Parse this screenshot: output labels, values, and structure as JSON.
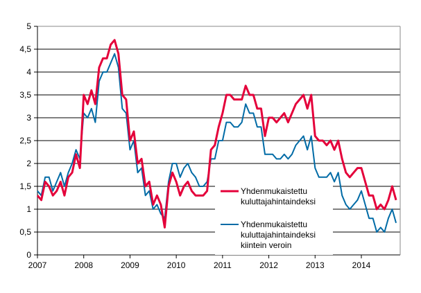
{
  "chart_data": {
    "type": "line",
    "title": "",
    "xlabel": "",
    "ylabel": "",
    "x_start": "2007-01",
    "x_frequency": "monthly",
    "x_ticks": [
      "2007",
      "2008",
      "2009",
      "2010",
      "2011",
      "2012",
      "2013",
      "2014"
    ],
    "y_ticks": [
      "0",
      "0,5",
      "1",
      "1,5",
      "2",
      "2,5",
      "3",
      "3,5",
      "4",
      "4,5",
      "5"
    ],
    "ylim": [
      0,
      5
    ],
    "grid": true,
    "legend_position": "bottom-right",
    "series": [
      {
        "name": "Yhdenmukaistettu kuluttajahintaindeksi",
        "name_lines": [
          "Yhdenmukaistettu",
          "kuluttajahintaindeksi"
        ],
        "color": "#e4003a",
        "values": [
          1.3,
          1.2,
          1.6,
          1.5,
          1.3,
          1.4,
          1.6,
          1.3,
          1.7,
          1.8,
          2.2,
          1.9,
          3.5,
          3.3,
          3.6,
          3.3,
          4.1,
          4.3,
          4.3,
          4.6,
          4.7,
          4.4,
          3.5,
          3.4,
          2.5,
          2.7,
          2.0,
          2.1,
          1.5,
          1.6,
          1.1,
          1.3,
          1.1,
          0.6,
          1.5,
          1.8,
          1.6,
          1.3,
          1.5,
          1.6,
          1.4,
          1.3,
          1.3,
          1.3,
          1.4,
          2.3,
          2.4,
          2.8,
          3.1,
          3.5,
          3.5,
          3.4,
          3.4,
          3.4,
          3.7,
          3.5,
          3.5,
          3.2,
          3.2,
          2.6,
          3.0,
          3.0,
          2.9,
          3.0,
          3.1,
          2.9,
          3.1,
          3.3,
          3.4,
          3.5,
          3.2,
          3.5,
          2.6,
          2.5,
          2.5,
          2.4,
          2.5,
          2.3,
          2.5,
          2.1,
          1.8,
          1.7,
          1.8,
          1.9,
          1.9,
          1.6,
          1.3,
          1.3,
          1.0,
          1.1,
          1.0,
          1.2,
          1.5,
          1.2
        ]
      },
      {
        "name": "Yhdenmukaistettu kuluttajahintaindeksi kiintein veroin",
        "name_lines": [
          "Yhdenmukaistettu",
          "kuluttajahintaindeksi",
          "kiintein veroin"
        ],
        "color": "#006ba6",
        "values": [
          1.4,
          1.3,
          1.7,
          1.7,
          1.4,
          1.6,
          1.8,
          1.5,
          1.8,
          2.0,
          2.3,
          2.1,
          3.1,
          3.0,
          3.2,
          2.9,
          3.8,
          4.0,
          4.0,
          4.2,
          4.4,
          4.1,
          3.2,
          3.1,
          2.3,
          2.5,
          1.8,
          1.9,
          1.3,
          1.4,
          1.0,
          1.1,
          0.9,
          0.8,
          1.6,
          2.0,
          2.0,
          1.7,
          1.9,
          2.0,
          1.8,
          1.7,
          1.5,
          1.5,
          1.6,
          2.1,
          2.1,
          2.5,
          2.5,
          2.9,
          2.9,
          2.8,
          2.8,
          2.9,
          3.3,
          3.1,
          3.1,
          2.8,
          2.8,
          2.2,
          2.2,
          2.2,
          2.1,
          2.1,
          2.2,
          2.1,
          2.2,
          2.4,
          2.5,
          2.6,
          2.3,
          2.6,
          1.9,
          1.7,
          1.7,
          1.7,
          1.8,
          1.6,
          1.8,
          1.3,
          1.1,
          1.0,
          1.1,
          1.2,
          1.4,
          1.1,
          0.8,
          0.8,
          0.5,
          0.6,
          0.5,
          0.8,
          1.0,
          0.7
        ]
      }
    ]
  }
}
